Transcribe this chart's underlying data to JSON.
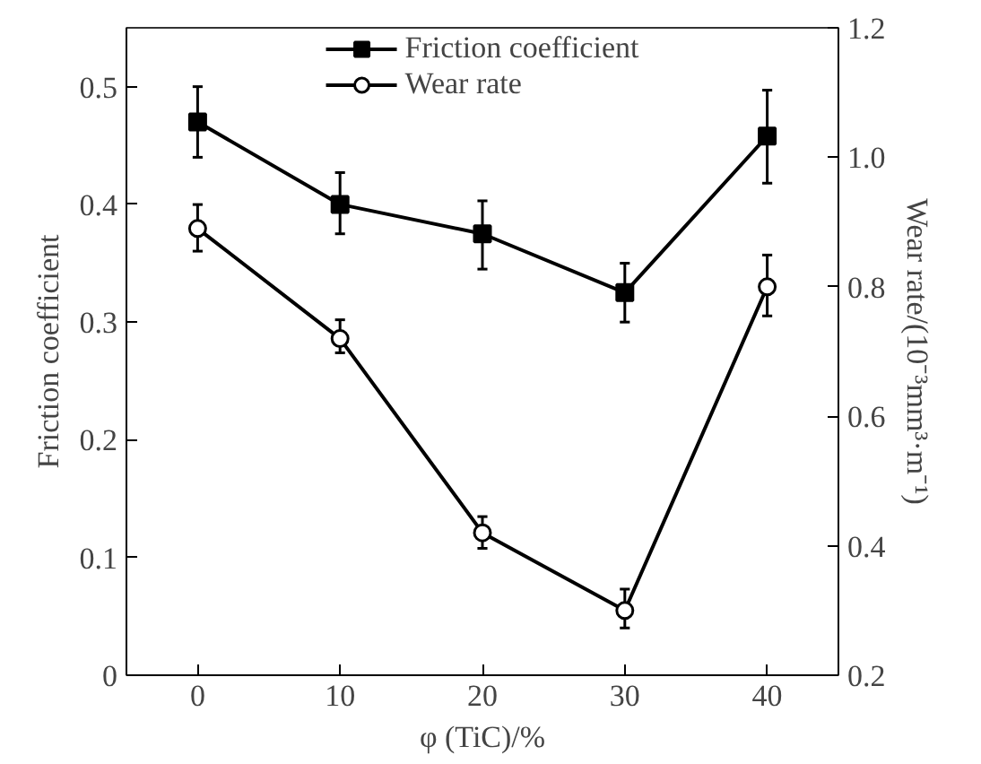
{
  "chart_data": {
    "type": "line",
    "xlabel": "φ (TiC)/%",
    "ylabel": "Friction coefficient",
    "y2label": "Wear rate/(10⁻³mm³·m⁻¹)",
    "x": [
      0,
      10,
      20,
      30,
      40
    ],
    "xlim": [
      -5,
      45
    ],
    "xticks": [
      0,
      10,
      20,
      30,
      40
    ],
    "ylim": [
      0,
      0.55
    ],
    "yticks": [
      0,
      0.1,
      0.2,
      0.3,
      0.4,
      0.5
    ],
    "y2lim": [
      0.2,
      1.2
    ],
    "y2ticks": [
      0.2,
      0.4,
      0.6,
      0.8,
      {
        "value": 1,
        "label": "1.0"
      },
      1.2
    ],
    "series": [
      {
        "name": "Friction coefficient",
        "color": "#000000",
        "marker": "square",
        "values": [
          0.47,
          0.4,
          0.375,
          0.325,
          0.458
        ],
        "errors": [
          [
            0.44,
            0.5
          ],
          [
            0.375,
            0.427
          ],
          [
            0.345,
            0.403
          ],
          [
            0.3,
            0.35
          ],
          [
            0.418,
            0.497
          ]
        ]
      },
      {
        "name": "Wear rate",
        "color": "#000000",
        "marker": "circle",
        "axis": "y2",
        "values": [
          0.89,
          0.72,
          0.42,
          0.3,
          0.8
        ],
        "errors": [
          [
            0.855,
            0.927
          ],
          [
            0.698,
            0.749
          ],
          [
            0.396,
            0.445
          ],
          [
            0.273,
            0.333
          ],
          [
            0.755,
            0.849
          ]
        ]
      }
    ],
    "legend": "top",
    "grid": false,
    "line_style": "solid"
  }
}
